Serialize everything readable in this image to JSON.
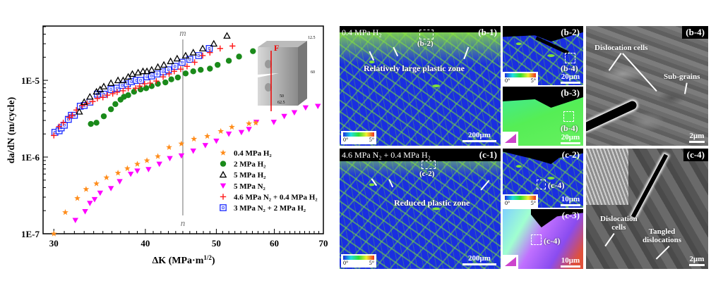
{
  "chart_data": {
    "type": "scatter",
    "xscale": "log",
    "yscale": "log",
    "xlim": [
      29,
      70
    ],
    "ylim": [
      1e-07,
      5.1e-05
    ],
    "xticks": [
      30,
      40,
      50,
      60,
      70
    ],
    "xtick_labels": [
      "30",
      "40",
      "50",
      "60",
      "70"
    ],
    "yticks": [
      1e-07,
      1e-06,
      1e-05
    ],
    "ytick_labels": [
      "1E-7",
      "1E-6",
      "1E-5"
    ],
    "xlabel": {
      "pre": "ΔK (MPa·m",
      "sup": "1/2",
      "post": ")"
    },
    "ylabel": "da/dN (m/cycle)",
    "legend_position": "lower-right",
    "reference_line": {
      "x": 45,
      "top_label": "m",
      "bottom_label": "n"
    },
    "inset": {
      "force": "F",
      "dims": [
        "12.5",
        "60",
        "50",
        "62.5"
      ]
    },
    "series": [
      {
        "name": "0.4 MPa H₂",
        "marker": "star",
        "color": "#ff8c1a",
        "x": [
          30,
          31.1,
          32.3,
          33.2,
          34.3,
          35.4,
          36.7,
          37.8,
          39.0,
          40.2,
          41.6,
          43.1,
          44.8,
          46.6,
          48.6,
          50.7,
          52.5,
          55.4,
          56.6
        ],
        "y": [
          1e-07,
          1.9e-07,
          2.9e-07,
          3.8e-07,
          4.5e-07,
          5.4e-07,
          6.2e-07,
          7.1e-07,
          8.1e-07,
          9e-07,
          1.02e-06,
          1.34e-06,
          1.49e-06,
          1.72e-06,
          1.87e-06,
          2.17e-06,
          2.46e-06,
          2.73e-06,
          2.8e-06
        ]
      },
      {
        "name": "2 MPa H₂",
        "marker": "circle",
        "color": "#1a8a1a",
        "x": [
          33.7,
          34.3,
          35.1,
          35.9,
          36.4,
          37.0,
          37.4,
          37.9,
          38.6,
          39.4,
          40.1,
          40.8,
          41.6,
          42.6,
          43.4,
          44.3,
          45.4,
          46.5,
          47.6,
          49.0,
          50.2,
          52.0,
          53.7,
          56.1
        ],
        "y": [
          2.7e-06,
          2.8e-06,
          3.4e-06,
          4.2e-06,
          4.9e-06,
          5.6e-06,
          6.1e-06,
          6.4e-06,
          7.1e-06,
          7.6e-06,
          7.9e-06,
          8.4e-06,
          9e-06,
          9.4e-06,
          1.03e-05,
          1.09e-05,
          1.23e-05,
          1.31e-05,
          1.37e-05,
          1.42e-05,
          1.59e-05,
          1.8e-05,
          2.04e-05,
          2.4e-05
        ]
      },
      {
        "name": "5 MPa H₂",
        "marker": "triangle-open",
        "color": "#000000",
        "x": [
          32.5,
          33.0,
          33.6,
          34.3,
          34.7,
          35.1,
          35.9,
          36.7,
          37.3,
          37.9,
          38.4,
          39.1,
          39.7,
          40.2,
          40.8,
          41.6,
          42.4,
          43.3,
          44.2,
          45.4,
          46.5,
          47.9,
          49.6,
          51.7
        ],
        "y": [
          3.9e-06,
          5.2e-06,
          6.1e-06,
          7.1e-06,
          7.6e-06,
          8.3e-06,
          9.2e-06,
          1e-05,
          1e-05,
          1.11e-05,
          1.21e-05,
          1.26e-05,
          1.31e-05,
          1.31e-05,
          1.37e-05,
          1.49e-05,
          1.59e-05,
          1.77e-05,
          1.92e-05,
          2.1e-05,
          2.3e-05,
          2.6e-05,
          3e-05,
          3.8e-05
        ]
      },
      {
        "name": "5 MPa N₂",
        "marker": "triangle-down",
        "color": "#ff00ff",
        "x": [
          32.1,
          33.1,
          33.6,
          34.1,
          34.7,
          35.9,
          36.9,
          38.2,
          39.0,
          40.4,
          41.8,
          43.2,
          44.8,
          46.5,
          48.3,
          50.0,
          52.0,
          54.1,
          55.4,
          56.7,
          59.9,
          61.9,
          63.9,
          66.2,
          68.8
        ],
        "y": [
          1.5e-07,
          1.95e-07,
          2.5e-07,
          2.8e-07,
          3.4e-07,
          3.9e-07,
          4.8e-07,
          6e-07,
          6.6e-07,
          6.9e-07,
          8.1e-07,
          9.6e-07,
          1.04e-06,
          1.2e-06,
          1.42e-06,
          1.62e-06,
          2e-06,
          2.1e-06,
          2.3e-06,
          2.85e-06,
          2.85e-06,
          3.4e-06,
          3.8e-06,
          4.4e-06,
          4.6e-06
        ]
      },
      {
        "name": "4.6 MPa N₂ + 0.4 MPa H₂",
        "marker": "plus",
        "color": "#ff1a1a",
        "x": [
          30,
          30.5,
          30.9,
          31.5,
          31.8,
          32.2,
          32.8,
          33.3,
          33.9,
          34.4,
          35.0,
          35.5,
          36.1,
          36.6,
          37.3,
          37.9,
          38.8,
          39.3,
          39.9,
          40.6,
          41.4,
          42.3,
          43.1,
          43.8,
          44.7,
          45.6,
          46.7,
          47.9,
          49.0,
          50.6,
          52.6
        ],
        "y": [
          1.91e-06,
          2.5e-06,
          2.8e-06,
          3.3e-06,
          3.5e-06,
          4.1e-06,
          4.7e-06,
          5e-06,
          5.3e-06,
          5.8e-06,
          6e-06,
          6.4e-06,
          6.7e-06,
          7e-06,
          7.3e-06,
          7.8e-06,
          7.9e-06,
          8.4e-06,
          9e-06,
          9.2e-06,
          9.8e-06,
          1.11e-05,
          1.21e-05,
          1.31e-05,
          1.4e-05,
          1.52e-05,
          1.72e-05,
          2.1e-05,
          2.3e-05,
          2.6e-05,
          2.8e-05
        ]
      },
      {
        "name": "3 MPa N₂ + 2 MPa H₂",
        "marker": "square-open",
        "color": "#1a2aff",
        "x": [
          30.1,
          30.5,
          30.7,
          31.0,
          31.4,
          31.7,
          32.0,
          32.6,
          33.0,
          33.6,
          34.4,
          35.1,
          35.9,
          36.6,
          37.2,
          37.8,
          38.3,
          38.9,
          39.4,
          40.2,
          40.8,
          41.5,
          42.3,
          43.0,
          43.9,
          44.9,
          46.0,
          47.3,
          48.9
        ],
        "y": [
          2.1e-06,
          2.2e-06,
          2.4e-06,
          2.6e-06,
          3.1e-06,
          3.5e-06,
          3.5e-06,
          4.6e-06,
          4.7e-06,
          5.2e-06,
          6.6e-06,
          6.6e-06,
          7.6e-06,
          7.9e-06,
          8.6e-06,
          9e-06,
          9.6e-06,
          1e-05,
          1e-05,
          1.11e-05,
          1.14e-05,
          1.21e-05,
          1.29e-05,
          1.37e-05,
          1.52e-05,
          1.72e-05,
          1.88e-05,
          2.1e-05,
          2.6e-05
        ]
      }
    ]
  },
  "panels": {
    "b1": {
      "tag": "(b-1)",
      "condition": "0.4 MPa H₂",
      "box": "(b-2)",
      "note": "Relatively large plastic zone",
      "scale": "200μm",
      "cmin": "0°",
      "cmax": "5°"
    },
    "b2": {
      "tag": "(b-2)",
      "box": "(b-4)",
      "scale": "20μm",
      "cmin": "0°",
      "cmax": "5°"
    },
    "b3": {
      "tag": "(b-3)",
      "box": "(b-4)",
      "scale": "20μm"
    },
    "b4": {
      "tag": "(b-4)",
      "note1": "Dislocation cells",
      "note2": "Sub-grains",
      "scale": "2μm"
    },
    "c1": {
      "tag": "(c-1)",
      "condition": "4.6 MPa N₂ + 0.4 MPa H₂",
      "box": "(c-2)",
      "note": "Reduced plastic zone",
      "scale": "200μm",
      "cmin": "0°",
      "cmax": "5°"
    },
    "c2": {
      "tag": "(c-2)",
      "box": "(c-4)",
      "scale": "10μm",
      "cmin": "0°",
      "cmax": "5°"
    },
    "c3": {
      "tag": "(c-3)",
      "box": "(c-4)",
      "scale": "10μm"
    },
    "c4": {
      "tag": "(c-4)",
      "note1": "Dislocation\ncells",
      "note2": "Tangled\ndislocations",
      "scale": "2μm"
    }
  }
}
